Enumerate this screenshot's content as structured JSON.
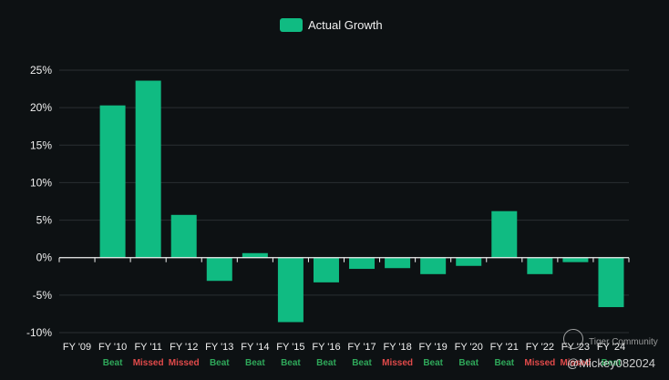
{
  "legend": {
    "label": "Actual Growth",
    "color": "#10bb82"
  },
  "watermark": {
    "brand": "Tiger Community",
    "handle": "@Mickey082024"
  },
  "colors": {
    "bar": "#10bb82",
    "beat": "#2fa85a",
    "missed": "#e04a4a",
    "grid": "#2a2f33"
  },
  "chart_data": {
    "type": "bar",
    "title": "",
    "xlabel": "",
    "ylabel": "",
    "ylim": [
      -10,
      25
    ],
    "yticks": [
      25,
      20,
      15,
      10,
      5,
      0,
      -5,
      -10
    ],
    "ytick_format": "%",
    "categories": [
      "FY '09",
      "FY '10",
      "FY '11",
      "FY '12",
      "FY '13",
      "FY '14",
      "FY '15",
      "FY '16",
      "FY '17",
      "FY '18",
      "FY '19",
      "FY '20",
      "FY '21",
      "FY '22",
      "FY '23",
      "FY '24"
    ],
    "series": [
      {
        "name": "Actual Growth",
        "values": [
          0,
          20.3,
          23.6,
          5.7,
          -3.1,
          0.6,
          -8.6,
          -3.3,
          -1.5,
          -1.4,
          -2.2,
          -1.1,
          6.2,
          -2.2,
          -0.6,
          -6.6
        ]
      }
    ],
    "results": [
      "",
      "Beat",
      "Missed",
      "Missed",
      "Beat",
      "Beat",
      "Beat",
      "Beat",
      "Beat",
      "Missed",
      "Beat",
      "Beat",
      "Beat",
      "Missed",
      "Missed",
      "Beat"
    ]
  }
}
